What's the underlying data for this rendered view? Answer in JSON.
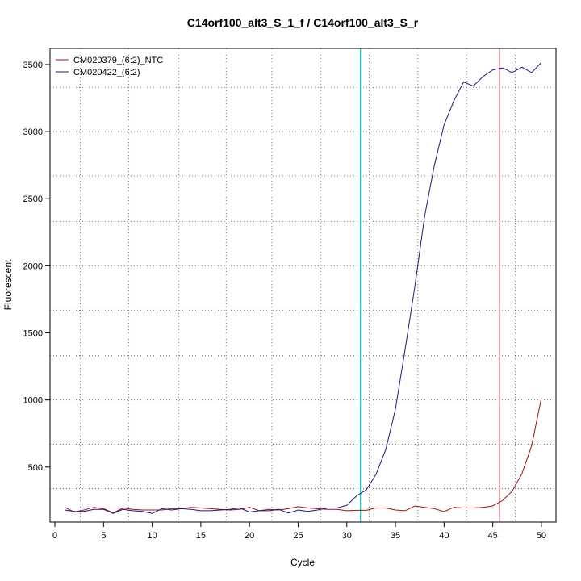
{
  "chart_data": {
    "type": "line",
    "title": "C14orf100_alt3_S_1_f / C14orf100_alt3_S_r",
    "xlabel": "Cycle",
    "ylabel": "Fluorescent",
    "xlim": [
      -0.5,
      51.5
    ],
    "ylim": [
      90,
      3620
    ],
    "x_ticks": [
      0,
      5,
      10,
      15,
      20,
      25,
      30,
      35,
      40,
      45,
      50
    ],
    "y_ticks": [
      500,
      1000,
      1500,
      2000,
      2500,
      3000,
      3500
    ],
    "grid": true,
    "grid_x": [
      2.6,
      7.6,
      12.7,
      17.6,
      22.3,
      27.3,
      32.3,
      37.3,
      42.3,
      47.3
    ],
    "grid_y": [
      340,
      670,
      1000,
      1330,
      1670,
      2000,
      2330,
      2670,
      3000,
      3330
    ],
    "legend_position": "top-left",
    "threshold_line": {
      "x": 31.4,
      "color": "#00cccc"
    },
    "ct_line": {
      "x": 45.7,
      "color": "#e06060"
    },
    "x": [
      1,
      2,
      3,
      4,
      5,
      6,
      7,
      8,
      9,
      10,
      11,
      12,
      13,
      14,
      15,
      16,
      17,
      18,
      19,
      20,
      21,
      22,
      23,
      24,
      25,
      26,
      27,
      28,
      29,
      30,
      31,
      32,
      33,
      34,
      35,
      36,
      37,
      38,
      39,
      40,
      41,
      42,
      43,
      44,
      45,
      46,
      47,
      48,
      49,
      50
    ],
    "series": [
      {
        "name": "CM020379_(6:2)_NTC",
        "color": "#a01010",
        "values": [
          200,
          165,
          180,
          200,
          190,
          160,
          195,
          185,
          180,
          180,
          180,
          190,
          190,
          200,
          195,
          190,
          185,
          180,
          185,
          200,
          175,
          185,
          180,
          190,
          205,
          195,
          190,
          185,
          185,
          175,
          178,
          178,
          195,
          195,
          180,
          175,
          210,
          200,
          190,
          168,
          200,
          195,
          195,
          200,
          210,
          250,
          320,
          450,
          660,
          1015
        ]
      },
      {
        "name": "CM020422_(6:2)",
        "color": "#1a1a7a",
        "values": [
          180,
          170,
          170,
          185,
          185,
          155,
          185,
          175,
          170,
          155,
          190,
          180,
          190,
          185,
          175,
          175,
          180,
          185,
          195,
          165,
          175,
          175,
          185,
          158,
          180,
          170,
          180,
          195,
          195,
          215,
          285,
          330,
          445,
          630,
          930,
          1380,
          1850,
          2370,
          2750,
          3050,
          3230,
          3370,
          3340,
          3410,
          3460,
          3475,
          3440,
          3480,
          3440,
          3515
        ]
      }
    ]
  }
}
